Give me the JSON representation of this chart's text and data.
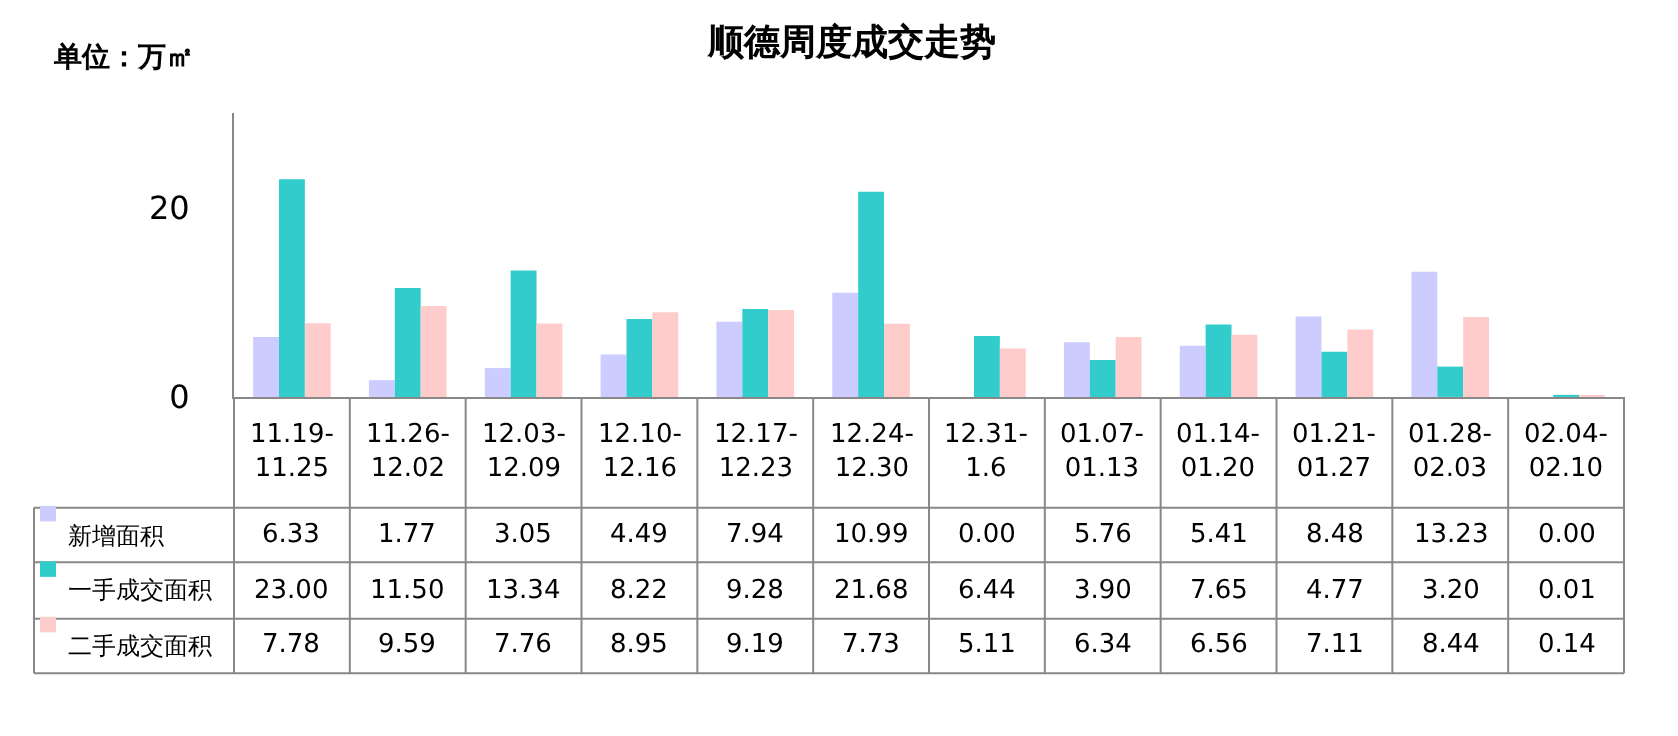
{
  "chart_data": {
    "type": "bar",
    "title": "顺德周度成交走势",
    "annotations": [
      "单位：万㎡"
    ],
    "categories": [
      "11.19-11.25",
      "11.26-12.02",
      "12.03-12.09",
      "12.10-12.16",
      "12.17-12.23",
      "12.24-12.30",
      "12.31-1.6",
      "01.07-01.13",
      "01.14-01.20",
      "01.21-01.27",
      "01.28-02.03",
      "02.04-02.10"
    ],
    "series": [
      {
        "name": "新增面积",
        "color": "#ccccff",
        "values": [
          6.33,
          1.77,
          3.05,
          4.49,
          7.94,
          10.99,
          0.0,
          5.76,
          5.41,
          8.48,
          13.23,
          0.0
        ],
        "value_labels": [
          "6.33",
          "1.77",
          "3.05",
          "4.49",
          "7.94",
          "10.99",
          "0.00",
          "5.76",
          "5.41",
          "8.48",
          "13.23",
          "0.00"
        ]
      },
      {
        "name": "一手成交面积",
        "color": "#33cccc",
        "values": [
          23.0,
          11.5,
          13.34,
          8.22,
          9.28,
          21.68,
          6.44,
          3.9,
          7.65,
          4.77,
          3.2,
          0.01
        ],
        "value_labels": [
          "23.00",
          "11.50",
          "13.34",
          "8.22",
          "9.28",
          "21.68",
          "6.44",
          "3.90",
          "7.65",
          "4.77",
          "3.20",
          "0.01"
        ]
      },
      {
        "name": "二手成交面积",
        "color": "#ffcccc",
        "values": [
          7.78,
          9.59,
          7.76,
          8.95,
          9.19,
          7.73,
          5.11,
          6.34,
          6.56,
          7.11,
          8.44,
          0.14
        ],
        "value_labels": [
          "7.78",
          "9.59",
          "7.76",
          "8.95",
          "9.19",
          "7.73",
          "5.11",
          "6.34",
          "6.56",
          "7.11",
          "8.44",
          "0.14"
        ]
      }
    ],
    "ylim": [
      0,
      30
    ],
    "yticks": [
      0,
      20
    ],
    "legend": "bottom left"
  }
}
